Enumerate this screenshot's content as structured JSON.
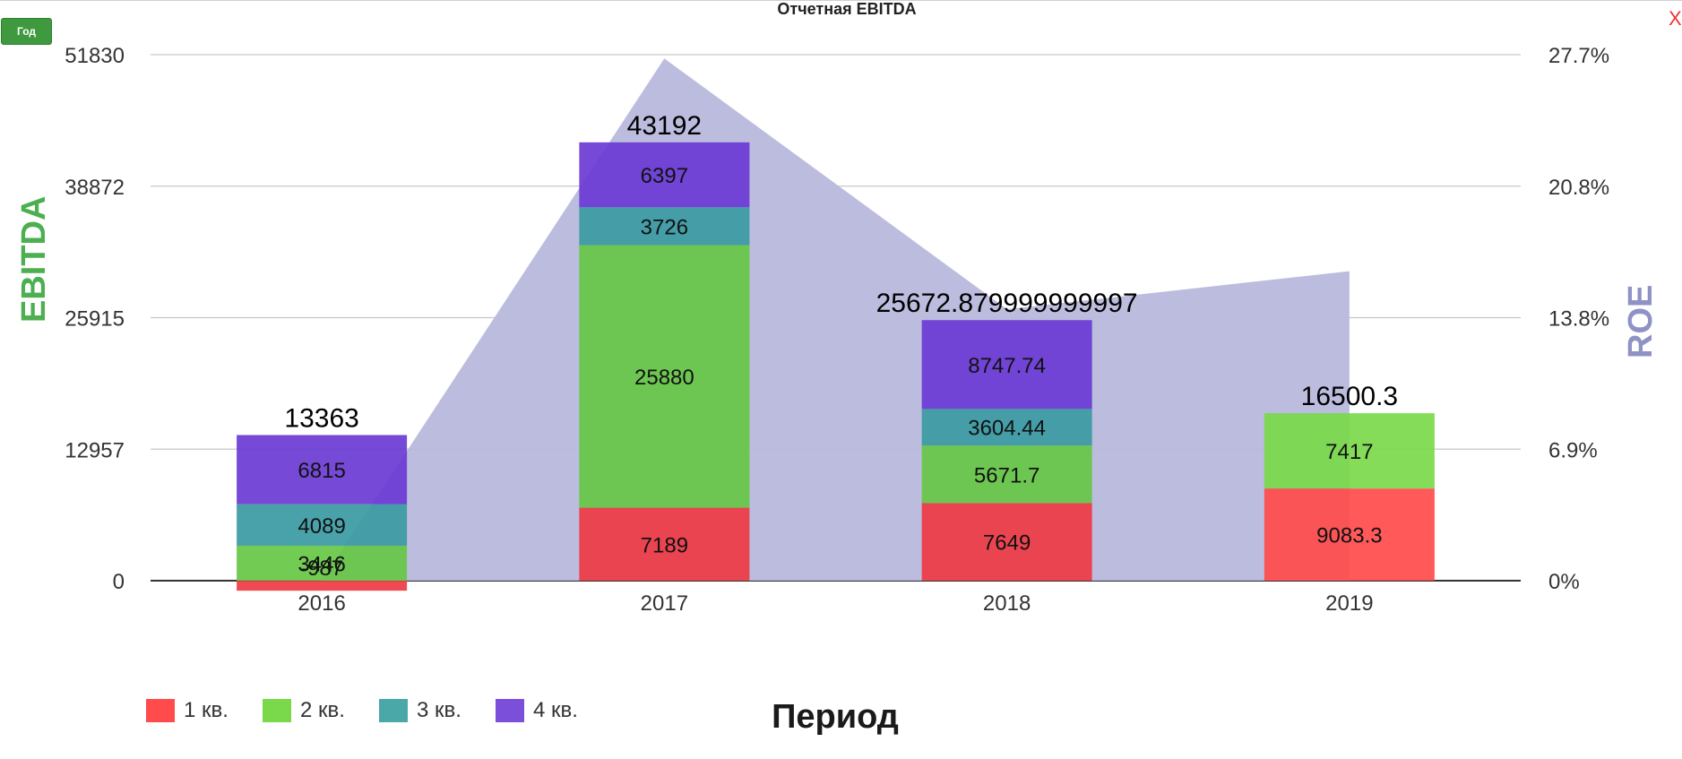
{
  "toolbar": {
    "period_button_label": "Год",
    "close_label": "X"
  },
  "colors": {
    "q1": "#ee3a44",
    "q2": "#66c744",
    "q3": "#3a9aa2",
    "q4": "#6a3ad4",
    "q1_2019": "#ff4b4b",
    "q2_2019": "#7ad94a",
    "roe_area": "#b8b8dc",
    "ylabel_left": "#4caf50",
    "ylabel_right": "#8f92c4"
  },
  "chart_data": {
    "type": "bar",
    "title": "Отчетная EBITDA",
    "xlabel": "Период",
    "ylabel": "EBITDA",
    "y2label": "ROE",
    "categories": [
      "2016",
      "2017",
      "2018",
      "2019"
    ],
    "ylim": [
      0,
      51830
    ],
    "yticks": [
      "0",
      "12957",
      "25915",
      "38872",
      "51830"
    ],
    "y2lim": [
      0,
      27.7
    ],
    "y2ticks": [
      "0%",
      "6.9%",
      "13.8%",
      "20.8%",
      "27.7%"
    ],
    "series": [
      {
        "name": "1 кв.",
        "values": [
          -987,
          7189,
          7649,
          9083.3
        ],
        "labels": [
          "-987",
          "7189",
          "7649",
          "9083.3"
        ]
      },
      {
        "name": "2 кв.",
        "values": [
          3446,
          25880,
          5671.7,
          7417
        ],
        "labels": [
          "3446",
          "25880",
          "5671.7",
          "7417"
        ]
      },
      {
        "name": "3 кв.",
        "values": [
          4089,
          3726,
          3604.44,
          0
        ],
        "labels": [
          "4089",
          "3726",
          "3604.44",
          ""
        ]
      },
      {
        "name": "4 кв.",
        "values": [
          6815,
          6397,
          8747.74,
          0
        ],
        "labels": [
          "6815",
          "6397",
          "8747.74",
          ""
        ]
      }
    ],
    "totals": [
      "13363",
      "43192",
      "25672.879999999997",
      "16500.3"
    ],
    "roe_area": {
      "values_percent": [
        0,
        27.5,
        14.3,
        16.3
      ]
    },
    "legend": {
      "placement": "bottom-left",
      "items": [
        "1 кв.",
        "2 кв.",
        "3 кв.",
        "4 кв."
      ]
    },
    "grid": true
  }
}
